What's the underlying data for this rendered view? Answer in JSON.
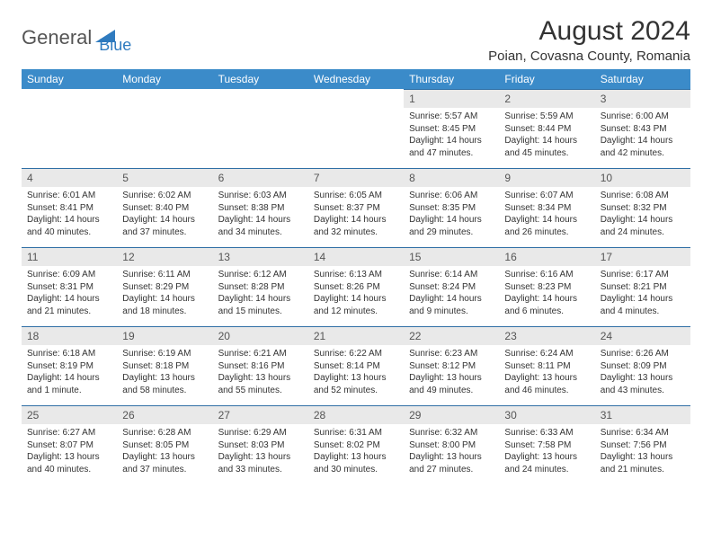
{
  "logo": {
    "text1": "General",
    "text2": "Blue",
    "color1": "#555555",
    "color2": "#2f7bbf"
  },
  "title": "August 2024",
  "location": "Poian, Covasna County, Romania",
  "colors": {
    "header_bg": "#3b8bc9",
    "header_text": "#ffffff",
    "daynum_bg": "#e9e9e9",
    "daynum_border": "#2f6fa5",
    "body_text": "#333333"
  },
  "daysOfWeek": [
    "Sunday",
    "Monday",
    "Tuesday",
    "Wednesday",
    "Thursday",
    "Friday",
    "Saturday"
  ],
  "weeks": [
    [
      {
        "empty": true
      },
      {
        "empty": true
      },
      {
        "empty": true
      },
      {
        "empty": true
      },
      {
        "n": "1",
        "sr": "5:57 AM",
        "ss": "8:45 PM",
        "dl": "14 hours and 47 minutes."
      },
      {
        "n": "2",
        "sr": "5:59 AM",
        "ss": "8:44 PM",
        "dl": "14 hours and 45 minutes."
      },
      {
        "n": "3",
        "sr": "6:00 AM",
        "ss": "8:43 PM",
        "dl": "14 hours and 42 minutes."
      }
    ],
    [
      {
        "n": "4",
        "sr": "6:01 AM",
        "ss": "8:41 PM",
        "dl": "14 hours and 40 minutes."
      },
      {
        "n": "5",
        "sr": "6:02 AM",
        "ss": "8:40 PM",
        "dl": "14 hours and 37 minutes."
      },
      {
        "n": "6",
        "sr": "6:03 AM",
        "ss": "8:38 PM",
        "dl": "14 hours and 34 minutes."
      },
      {
        "n": "7",
        "sr": "6:05 AM",
        "ss": "8:37 PM",
        "dl": "14 hours and 32 minutes."
      },
      {
        "n": "8",
        "sr": "6:06 AM",
        "ss": "8:35 PM",
        "dl": "14 hours and 29 minutes."
      },
      {
        "n": "9",
        "sr": "6:07 AM",
        "ss": "8:34 PM",
        "dl": "14 hours and 26 minutes."
      },
      {
        "n": "10",
        "sr": "6:08 AM",
        "ss": "8:32 PM",
        "dl": "14 hours and 24 minutes."
      }
    ],
    [
      {
        "n": "11",
        "sr": "6:09 AM",
        "ss": "8:31 PM",
        "dl": "14 hours and 21 minutes."
      },
      {
        "n": "12",
        "sr": "6:11 AM",
        "ss": "8:29 PM",
        "dl": "14 hours and 18 minutes."
      },
      {
        "n": "13",
        "sr": "6:12 AM",
        "ss": "8:28 PM",
        "dl": "14 hours and 15 minutes."
      },
      {
        "n": "14",
        "sr": "6:13 AM",
        "ss": "8:26 PM",
        "dl": "14 hours and 12 minutes."
      },
      {
        "n": "15",
        "sr": "6:14 AM",
        "ss": "8:24 PM",
        "dl": "14 hours and 9 minutes."
      },
      {
        "n": "16",
        "sr": "6:16 AM",
        "ss": "8:23 PM",
        "dl": "14 hours and 6 minutes."
      },
      {
        "n": "17",
        "sr": "6:17 AM",
        "ss": "8:21 PM",
        "dl": "14 hours and 4 minutes."
      }
    ],
    [
      {
        "n": "18",
        "sr": "6:18 AM",
        "ss": "8:19 PM",
        "dl": "14 hours and 1 minute."
      },
      {
        "n": "19",
        "sr": "6:19 AM",
        "ss": "8:18 PM",
        "dl": "13 hours and 58 minutes."
      },
      {
        "n": "20",
        "sr": "6:21 AM",
        "ss": "8:16 PM",
        "dl": "13 hours and 55 minutes."
      },
      {
        "n": "21",
        "sr": "6:22 AM",
        "ss": "8:14 PM",
        "dl": "13 hours and 52 minutes."
      },
      {
        "n": "22",
        "sr": "6:23 AM",
        "ss": "8:12 PM",
        "dl": "13 hours and 49 minutes."
      },
      {
        "n": "23",
        "sr": "6:24 AM",
        "ss": "8:11 PM",
        "dl": "13 hours and 46 minutes."
      },
      {
        "n": "24",
        "sr": "6:26 AM",
        "ss": "8:09 PM",
        "dl": "13 hours and 43 minutes."
      }
    ],
    [
      {
        "n": "25",
        "sr": "6:27 AM",
        "ss": "8:07 PM",
        "dl": "13 hours and 40 minutes."
      },
      {
        "n": "26",
        "sr": "6:28 AM",
        "ss": "8:05 PM",
        "dl": "13 hours and 37 minutes."
      },
      {
        "n": "27",
        "sr": "6:29 AM",
        "ss": "8:03 PM",
        "dl": "13 hours and 33 minutes."
      },
      {
        "n": "28",
        "sr": "6:31 AM",
        "ss": "8:02 PM",
        "dl": "13 hours and 30 minutes."
      },
      {
        "n": "29",
        "sr": "6:32 AM",
        "ss": "8:00 PM",
        "dl": "13 hours and 27 minutes."
      },
      {
        "n": "30",
        "sr": "6:33 AM",
        "ss": "7:58 PM",
        "dl": "13 hours and 24 minutes."
      },
      {
        "n": "31",
        "sr": "6:34 AM",
        "ss": "7:56 PM",
        "dl": "13 hours and 21 minutes."
      }
    ]
  ],
  "labels": {
    "sunrise": "Sunrise:",
    "sunset": "Sunset:",
    "daylight": "Daylight:"
  }
}
